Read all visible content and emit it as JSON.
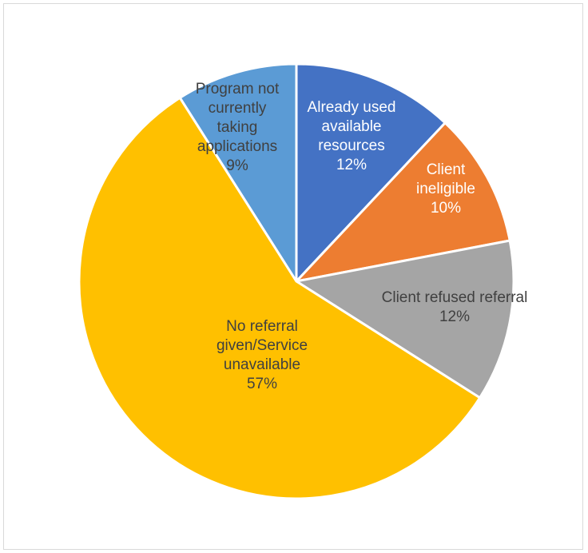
{
  "chart_data": {
    "type": "pie",
    "title": "",
    "start_angle_deg": 0,
    "direction": "clockwise",
    "slices": [
      {
        "name": "Already used available resources",
        "label_lines": [
          "Already used",
          "available",
          "resources"
        ],
        "value": 12,
        "percent_label": "12%",
        "color": "#4472c4",
        "text_color": "#ffffff"
      },
      {
        "name": "Client ineligible",
        "label_lines": [
          "Client",
          "ineligible"
        ],
        "value": 10,
        "percent_label": "10%",
        "color": "#ed7d31",
        "text_color": "#ffffff"
      },
      {
        "name": "Client refused referral",
        "label_lines": [
          "Client refused referral"
        ],
        "value": 12,
        "percent_label": "12%",
        "color": "#a5a5a5",
        "text_color": "#404040"
      },
      {
        "name": "No referral given/Service unavailable",
        "label_lines": [
          "No referral",
          "given/Service",
          "unavailable"
        ],
        "value": 57,
        "percent_label": "57%",
        "color": "#ffc000",
        "text_color": "#404040"
      },
      {
        "name": "Program not currently taking applications",
        "label_lines": [
          "Program not",
          "currently",
          "taking",
          "applications"
        ],
        "value": 9,
        "percent_label": "9%",
        "color": "#5b9bd5",
        "text_color": "#404040"
      }
    ]
  }
}
